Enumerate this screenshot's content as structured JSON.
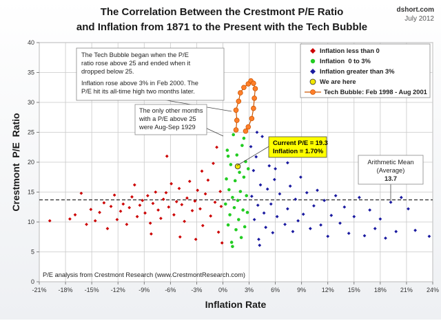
{
  "site": "dshort.com",
  "date_label": "July 2012",
  "chart_data": {
    "type": "scatter",
    "title_line1": "The Correlation Between the Crestmont P/E Ratio",
    "title_line2": "and Inflation from 1871 to the Present with the Tech Bubble",
    "xlabel": "Inflation Rate",
    "ylabel": "Crestmont  P/E  Ratio",
    "xlim": [
      -21,
      24
    ],
    "ylim": [
      0,
      40
    ],
    "x_ticks": [
      -21,
      -18,
      -15,
      -12,
      -9,
      -6,
      -3,
      0,
      3,
      6,
      9,
      12,
      15,
      18,
      21,
      24
    ],
    "x_tick_labels": [
      "-21%",
      "-18%",
      "-15%",
      "-12%",
      "-9%",
      "-6%",
      "-3%",
      "0%",
      "3%",
      "6%",
      "9%",
      "12%",
      "15%",
      "18%",
      "21%",
      "24%"
    ],
    "y_ticks": [
      0,
      5,
      10,
      15,
      20,
      25,
      30,
      35,
      40
    ],
    "y_tick_labels": [
      "0",
      "5",
      "10",
      "15",
      "20",
      "25",
      "30",
      "35",
      "40"
    ],
    "grid": true,
    "legend_position": "top-right",
    "series": [
      {
        "name": "Inflation less than 0",
        "color": "#cc0000",
        "marker": "diamond",
        "points": [
          [
            -19.8,
            10.2
          ],
          [
            -17.5,
            10.5
          ],
          [
            -16.9,
            11.2
          ],
          [
            -16.2,
            14.8
          ],
          [
            -15.6,
            9.6
          ],
          [
            -15.1,
            12.1
          ],
          [
            -14.6,
            10.2
          ],
          [
            -14.1,
            11.6
          ],
          [
            -13.6,
            13.2
          ],
          [
            -13.2,
            8.9
          ],
          [
            -12.8,
            12.6
          ],
          [
            -12.4,
            14.5
          ],
          [
            -12.1,
            10.4
          ],
          [
            -11.7,
            11.8
          ],
          [
            -11.4,
            13.0
          ],
          [
            -11.0,
            9.6
          ],
          [
            -10.7,
            12.4
          ],
          [
            -10.4,
            14.2
          ],
          [
            -10.1,
            16.2
          ],
          [
            -9.8,
            10.9
          ],
          [
            -9.5,
            12.8
          ],
          [
            -9.2,
            13.6
          ],
          [
            -8.9,
            11.5
          ],
          [
            -8.6,
            14.4
          ],
          [
            -8.3,
            9.8
          ],
          [
            -8.0,
            13.1
          ],
          [
            -7.7,
            15.0
          ],
          [
            -7.4,
            12.0
          ],
          [
            -7.1,
            10.6
          ],
          [
            -6.8,
            13.8
          ],
          [
            -6.5,
            14.9
          ],
          [
            -6.2,
            12.5
          ],
          [
            -5.9,
            16.4
          ],
          [
            -5.6,
            11.2
          ],
          [
            -5.3,
            13.4
          ],
          [
            -5.0,
            15.6
          ],
          [
            -4.7,
            12.9
          ],
          [
            -4.4,
            10.1
          ],
          [
            -4.1,
            14.0
          ],
          [
            -3.8,
            16.8
          ],
          [
            -3.5,
            11.9
          ],
          [
            -3.2,
            13.5
          ],
          [
            -2.9,
            15.3
          ],
          [
            -2.6,
            12.2
          ],
          [
            -2.3,
            9.4
          ],
          [
            -2.0,
            14.7
          ],
          [
            -1.7,
            17.0
          ],
          [
            -1.4,
            11.0
          ],
          [
            -1.1,
            19.8
          ],
          [
            -0.9,
            13.3
          ],
          [
            -0.7,
            22.5
          ],
          [
            -0.5,
            8.3
          ],
          [
            -0.3,
            15.1
          ],
          [
            -0.2,
            12.6
          ],
          [
            -0.1,
            6.5
          ],
          [
            -4.9,
            7.5
          ],
          [
            -3.1,
            7.1
          ],
          [
            -8.2,
            8.0
          ],
          [
            -6.4,
            21.0
          ],
          [
            -2.4,
            18.5
          ]
        ]
      },
      {
        "name": "Inflation  0 to 3%",
        "color": "#22cc22",
        "marker": "circle",
        "points": [
          [
            0.3,
            13.0
          ],
          [
            0.4,
            17.2
          ],
          [
            0.5,
            22.0
          ],
          [
            0.6,
            9.5
          ],
          [
            0.7,
            15.4
          ],
          [
            0.8,
            11.2
          ],
          [
            0.9,
            19.6
          ],
          [
            1.0,
            6.6
          ],
          [
            1.1,
            14.1
          ],
          [
            1.2,
            24.6
          ],
          [
            1.3,
            12.4
          ],
          [
            1.4,
            16.9
          ],
          [
            1.5,
            8.7
          ],
          [
            1.6,
            21.2
          ],
          [
            1.7,
            13.6
          ],
          [
            1.8,
            10.4
          ],
          [
            1.9,
            18.3
          ],
          [
            2.0,
            15.1
          ],
          [
            2.1,
            7.4
          ],
          [
            2.2,
            22.8
          ],
          [
            2.3,
            12.0
          ],
          [
            2.4,
            17.5
          ],
          [
            2.5,
            9.2
          ],
          [
            2.6,
            20.1
          ],
          [
            2.7,
            14.4
          ],
          [
            2.8,
            11.6
          ],
          [
            2.9,
            18.9
          ],
          [
            1.1,
            5.9
          ],
          [
            2.4,
            24.0
          ],
          [
            0.6,
            21.0
          ]
        ]
      },
      {
        "name": "Inflation greater than 3%",
        "color": "#1a1aa0",
        "marker": "diamond",
        "points": [
          [
            3.2,
            22.6
          ],
          [
            3.3,
            14.3
          ],
          [
            3.5,
            18.6
          ],
          [
            3.6,
            10.4
          ],
          [
            3.8,
            20.9
          ],
          [
            4.0,
            12.8
          ],
          [
            4.1,
            7.1
          ],
          [
            4.3,
            16.2
          ],
          [
            4.5,
            24.3
          ],
          [
            4.7,
            11.5
          ],
          [
            4.9,
            9.1
          ],
          [
            5.1,
            15.5
          ],
          [
            5.3,
            19.4
          ],
          [
            5.5,
            13.0
          ],
          [
            5.7,
            8.2
          ],
          [
            5.9,
            17.1
          ],
          [
            6.2,
            10.9
          ],
          [
            6.5,
            14.7
          ],
          [
            6.8,
            21.4
          ],
          [
            7.1,
            9.6
          ],
          [
            7.4,
            12.2
          ],
          [
            7.7,
            16.0
          ],
          [
            8.0,
            8.4
          ],
          [
            8.3,
            13.8
          ],
          [
            8.6,
            10.2
          ],
          [
            8.9,
            17.5
          ],
          [
            9.2,
            11.3
          ],
          [
            9.6,
            14.9
          ],
          [
            10.0,
            8.9
          ],
          [
            10.4,
            12.7
          ],
          [
            10.8,
            15.3
          ],
          [
            11.2,
            9.5
          ],
          [
            11.6,
            13.6
          ],
          [
            12.0,
            7.6
          ],
          [
            12.4,
            11.1
          ],
          [
            12.9,
            14.4
          ],
          [
            13.4,
            9.8
          ],
          [
            13.9,
            12.5
          ],
          [
            14.4,
            8.1
          ],
          [
            15.0,
            10.9
          ],
          [
            15.6,
            14.1
          ],
          [
            16.2,
            7.7
          ],
          [
            16.8,
            12.0
          ],
          [
            17.4,
            8.9
          ],
          [
            18.0,
            10.5
          ],
          [
            18.6,
            7.3
          ],
          [
            19.2,
            13.3
          ],
          [
            19.8,
            8.4
          ],
          [
            20.4,
            14.1
          ],
          [
            21.2,
            12.2
          ],
          [
            22.0,
            8.6
          ],
          [
            23.6,
            7.6
          ],
          [
            4.2,
            6.1
          ],
          [
            6.0,
            18.9
          ],
          [
            3.9,
            25.0
          ],
          [
            7.4,
            19.9
          ]
        ]
      },
      {
        "name": "We are here",
        "color": "#f2e600",
        "marker": "circle",
        "points": [
          [
            1.7,
            19.3
          ]
        ]
      },
      {
        "name": "Tech Bubble: Feb 1998 - Aug 2001",
        "color": "#ff7f2a",
        "marker": "circle-line",
        "points": [
          [
            1.5,
            25.4
          ],
          [
            1.6,
            27.0
          ],
          [
            1.5,
            28.7
          ],
          [
            1.8,
            30.2
          ],
          [
            2.0,
            31.6
          ],
          [
            2.4,
            32.5
          ],
          [
            2.9,
            33.1
          ],
          [
            3.2,
            33.6
          ],
          [
            3.5,
            33.2
          ],
          [
            3.7,
            32.3
          ],
          [
            3.6,
            30.7
          ],
          [
            3.5,
            29.0
          ],
          [
            3.3,
            27.3
          ],
          [
            2.9,
            25.9
          ],
          [
            2.6,
            25.2
          ]
        ]
      }
    ],
    "mean_line": {
      "value": 13.7,
      "label_line1": "Arithmetic Mean",
      "label_line2": "(Average)",
      "label_value": "13.7"
    },
    "annotations": {
      "tech_bubble_note": [
        "The Tech Bubble began when the P/E",
        "ratio rose above 25 and ended when it",
        "dropped below 25.",
        "Inflation rose above 3% in Feb 2000.  The",
        "P/E hit its all-time high two months later."
      ],
      "other_months_note": [
        "The only other months",
        "with a P/E above 25",
        "were Aug-Sep 1929"
      ],
      "current_line1": "Current P/E = 19.3",
      "current_line2": "Inflation = 1.70%",
      "source": "P/E analysis from Crestmont Research (www.CrestmontResearch.com)"
    }
  }
}
